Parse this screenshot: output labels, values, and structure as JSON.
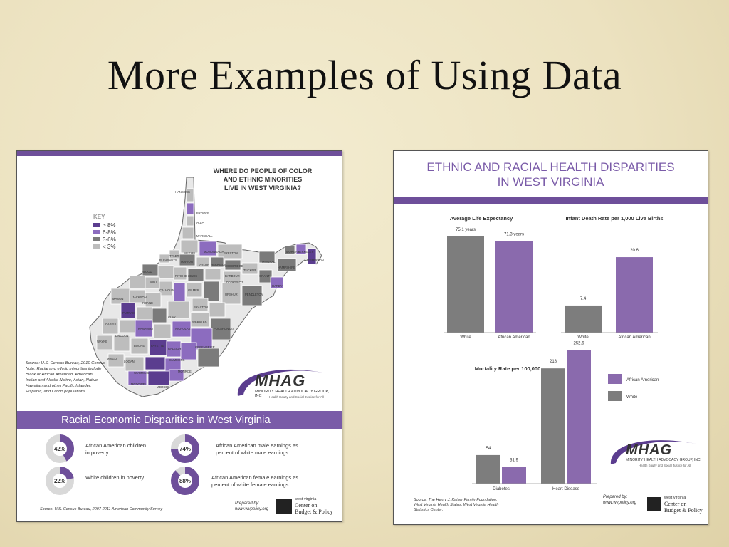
{
  "slide": {
    "title": "More Examples of Using Data"
  },
  "left_panel": {
    "map_title": [
      "WHERE DO PEOPLE OF COLOR",
      "AND ETHNIC MINORITIES",
      "LIVE IN WEST VIRGINIA?"
    ],
    "key": {
      "title": "KEY",
      "items": [
        {
          "label": "> 8%",
          "color": "#5b3d8f"
        },
        {
          "label": "6-8%",
          "color": "#8c6cbf"
        },
        {
          "label": "3-6%",
          "color": "#7b7b7b"
        },
        {
          "label": "< 3%",
          "color": "#bdbdbd"
        }
      ]
    },
    "counties": [
      "HANCOCK",
      "BROOKE",
      "OHIO",
      "MARSHALL",
      "WETZEL",
      "MONONGALIA",
      "PRESTON",
      "MINERAL",
      "MORGAN",
      "BERKELEY",
      "JEFFERSON",
      "HAMPSHIRE",
      "TYLER",
      "PLEASANTS",
      "MARION",
      "TAYLOR",
      "HARRISON",
      "DODDRIDGE",
      "RITCHIE",
      "WOOD",
      "WIRT",
      "BARBOUR",
      "TUCKER",
      "GRANT",
      "HARDY",
      "LEWIS",
      "UPSHUR",
      "RANDOLPH",
      "GILMER",
      "CALHOUN",
      "JACKSON",
      "MASON",
      "ROANE",
      "BRAXTON",
      "PENDLETON",
      "WEBSTER",
      "CLAY",
      "PUTNAM",
      "CABELL",
      "KANAWHA",
      "NICHOLAS",
      "POCAHONTAS",
      "WAYNE",
      "LINCOLN",
      "BOONE",
      "FAYETTE",
      "GREENBRIER",
      "MINGO",
      "LOGAN",
      "RALEIGH",
      "WYOMING",
      "SUMMERS",
      "MONROE",
      "MCDOWELL",
      "MERCER"
    ],
    "source_note": [
      "Source: U.S. Census Bureau, 2010 Census",
      "Note: Racial and ethnic minorities include",
      "Black or African American, American",
      "Indian and Alaska Native, Asian, Native",
      "Hawaiian and other Pacific Islander,",
      "Hispanic, and Latino populations."
    ],
    "logo": {
      "text": "MHAG",
      "sub": "MINORITY HEALTH ADVOCACY GROUP, INC",
      "tag": "Health Equity and Social Justice for All"
    },
    "banner_title": "Racial Economic Disparities in West Virginia",
    "donuts": [
      {
        "pct_label": "42%",
        "value": 42,
        "caption": [
          "African American children",
          "in poverty"
        ]
      },
      {
        "pct_label": "74%",
        "value": 74,
        "caption": [
          "African American male earnings as",
          "percent of white male earnings"
        ]
      },
      {
        "pct_label": "22%",
        "value": 22,
        "caption": [
          "White children in poverty"
        ]
      },
      {
        "pct_label": "88%",
        "value": 88,
        "caption": [
          "African American female earnings as",
          "percent of  white female earnings"
        ]
      }
    ],
    "footer_source": "Source: U.S. Census Bureau, 2007-2011 American Community Survey",
    "prepared": [
      "Prepared by:",
      "www.wvpolicy.org"
    ],
    "wvcbp": [
      "west virginia",
      "Center on",
      "Budget & Policy"
    ]
  },
  "right_panel": {
    "title": [
      "ETHNIC AND RACIAL HEALTH DISPARITIES",
      "IN WEST VIRGINIA"
    ],
    "legend": [
      {
        "label": "African American",
        "color": "#8a6aad"
      },
      {
        "label": "White",
        "color": "#7d7d7d"
      }
    ],
    "source_note": [
      "Source: The Henry J. Kaiser Family Foundation,",
      "West Virginia Health Status, West Virginia Health",
      "Statistics Center."
    ],
    "prepared": [
      "Prepared by:",
      "www.wvpolicy.org"
    ],
    "logo": {
      "text": "MHAG",
      "sub": "MINORITY HEALTH ADVOCACY GROUP, INC",
      "tag": "Health Equity and Social Justice for All"
    },
    "wvcbp": [
      "west virginia",
      "Center on",
      "Budget & Policy"
    ]
  },
  "chart_data": [
    {
      "type": "bar",
      "title": "Average Life Expectancy",
      "categories": [
        "White",
        "African American"
      ],
      "values": [
        75.1,
        71.3
      ],
      "data_labels": [
        "75.1 years",
        "71.3 years"
      ],
      "colors": [
        "#7d7d7d",
        "#8a6aad"
      ],
      "ylim": [
        0,
        80
      ]
    },
    {
      "type": "bar",
      "title": "Infant Death Rate per 1,000 Live Births",
      "categories": [
        "White",
        "African American"
      ],
      "values": [
        7.4,
        20.6
      ],
      "data_labels": [
        "7.4",
        "20.6"
      ],
      "colors": [
        "#7d7d7d",
        "#8a6aad"
      ],
      "ylim": [
        0,
        35
      ]
    },
    {
      "type": "bar",
      "title": "Mortality Rate per 100,000",
      "categories": [
        "Diabetes",
        "Heart Disease"
      ],
      "series": [
        {
          "name": "White",
          "values": [
            54,
            218
          ],
          "data_labels": [
            "54",
            "218"
          ],
          "color": "#7d7d7d"
        },
        {
          "name": "African American",
          "values": [
            31.9,
            252.6
          ],
          "data_labels": [
            "31.9",
            "252.6"
          ],
          "color": "#8a6aad"
        }
      ],
      "ylim": [
        0,
        260
      ]
    }
  ]
}
